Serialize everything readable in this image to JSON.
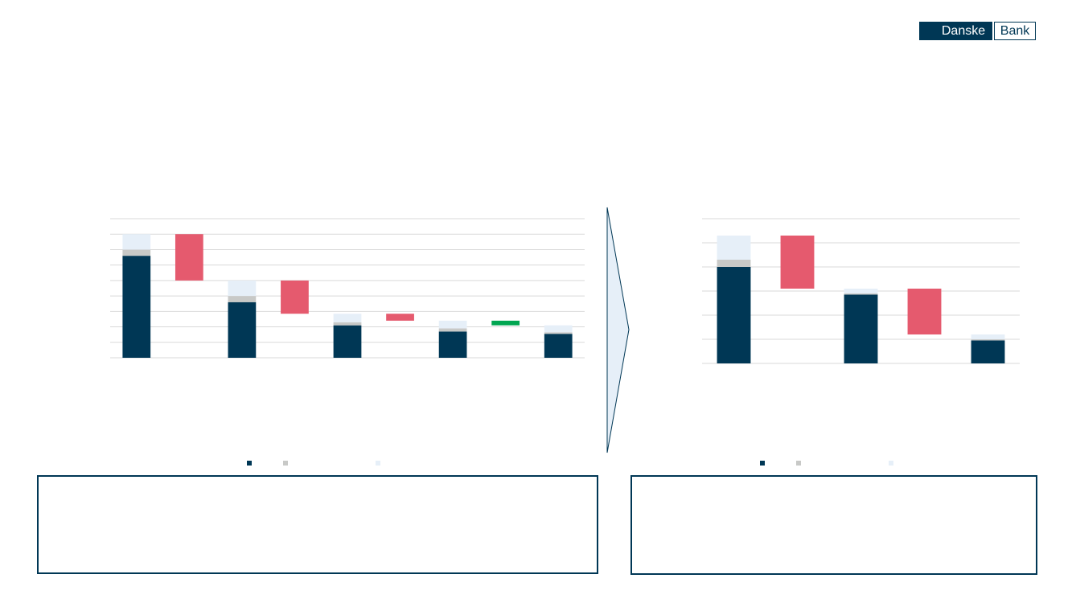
{
  "logo": {
    "left": "Danske",
    "right": "Bank"
  },
  "chart_data": [
    {
      "type": "waterfall",
      "categories": [
        null,
        null,
        null,
        null,
        null,
        null,
        null,
        null,
        null
      ],
      "series": [
        {
          "color": "#003755",
          "values": [
            6.6,
            null,
            3.6,
            null,
            2.1,
            null,
            1.7,
            null,
            1.55
          ]
        },
        {
          "color": "#c8c9c7",
          "values": [
            0.4,
            null,
            0.4,
            null,
            0.2,
            null,
            0.2,
            null,
            0.1
          ]
        },
        {
          "color": "#e6eff8",
          "values": [
            1.0,
            null,
            1.0,
            null,
            0.55,
            null,
            0.5,
            null,
            0.45
          ]
        }
      ],
      "changes": {
        "values": [
          null,
          -3.0,
          null,
          -2.15,
          null,
          -0.45,
          null,
          -0.3,
          null
        ],
        "colors": [
          null,
          "#e55a6e",
          null,
          "#e55a6e",
          null,
          "#e55a6e",
          null,
          "#00a651",
          null
        ]
      },
      "ylim": [
        0,
        9
      ],
      "yticks": [
        0,
        1,
        2,
        3,
        4,
        5,
        6,
        7,
        8,
        9
      ],
      "grid": true
    },
    {
      "type": "waterfall",
      "categories": [
        null,
        null,
        null,
        null,
        null
      ],
      "series": [
        {
          "color": "#003755",
          "values": [
            4.0,
            null,
            2.85,
            null,
            0.95
          ]
        },
        {
          "color": "#c8c9c7",
          "values": [
            0.3,
            null,
            0.05,
            null,
            0.05
          ]
        },
        {
          "color": "#e6eff8",
          "values": [
            1.0,
            null,
            0.2,
            null,
            0.2
          ]
        }
      ],
      "changes": {
        "values": [
          null,
          -2.2,
          null,
          -1.9,
          null
        ],
        "colors": [
          null,
          "#e55a6e",
          null,
          "#e55a6e",
          null
        ]
      },
      "ylim": [
        0,
        6
      ],
      "yticks": [
        0,
        1,
        2,
        3,
        4,
        5,
        6
      ],
      "grid": true
    }
  ]
}
